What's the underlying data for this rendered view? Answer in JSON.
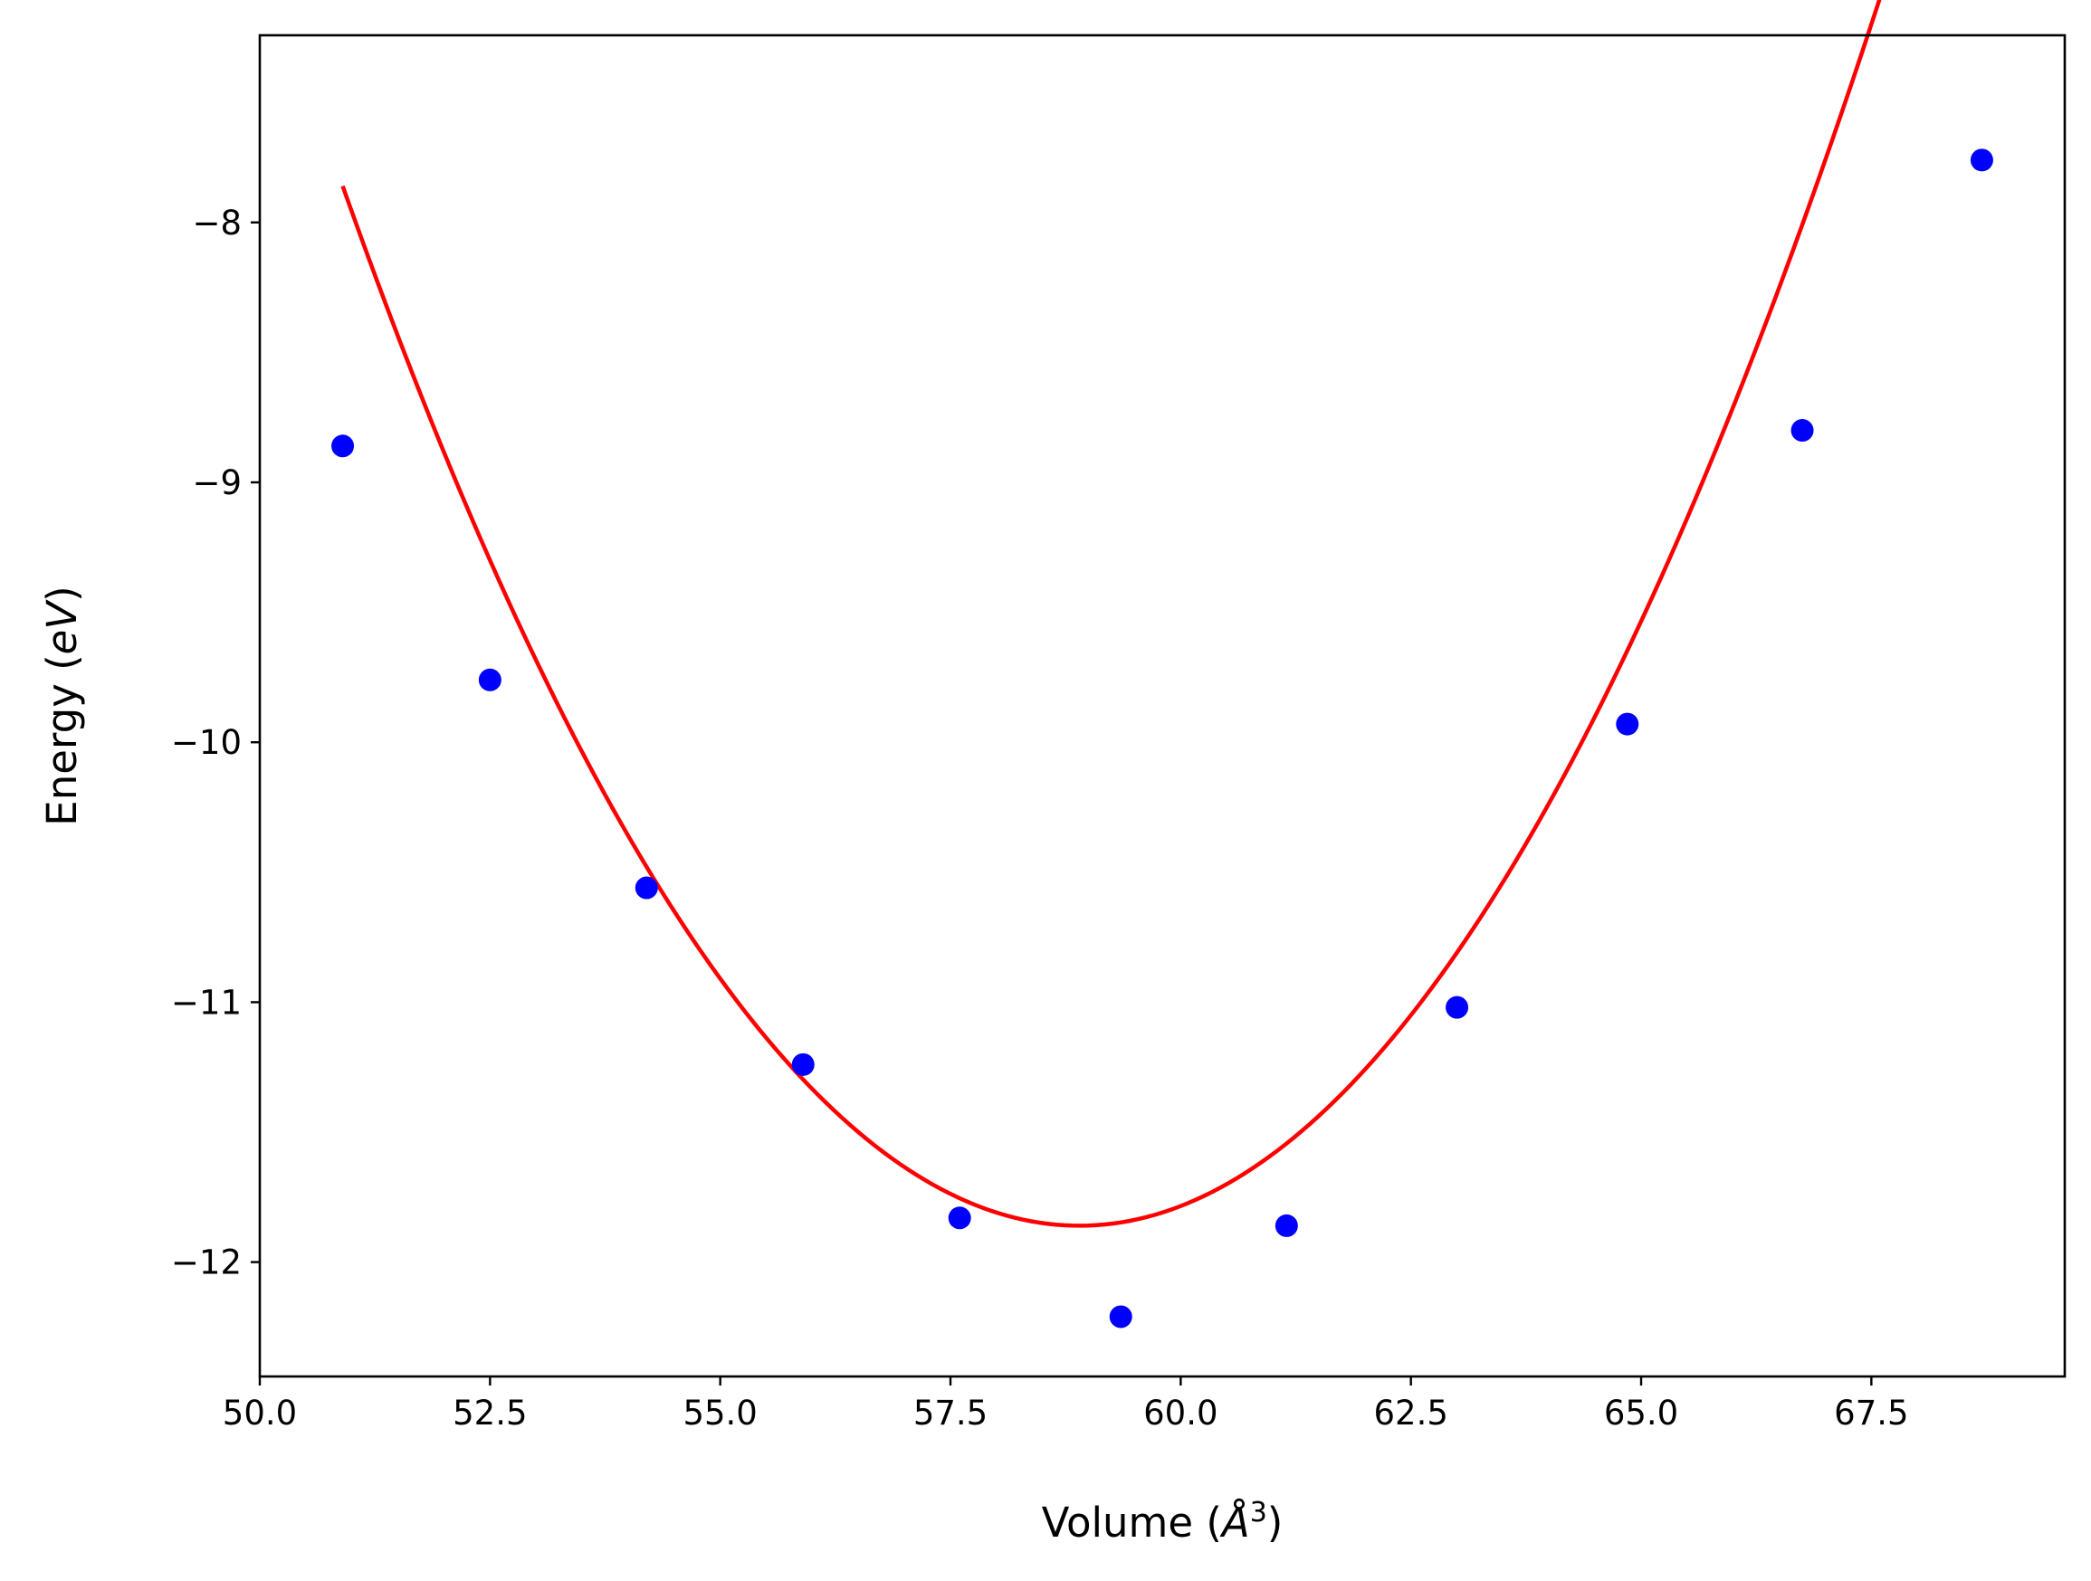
{
  "chart_data": {
    "type": "scatter",
    "title": "",
    "xlabel": {
      "prefix": "Volume (",
      "symbol": "Å",
      "sup": "3",
      "suffix": ")"
    },
    "ylabel": {
      "prefix": "Energy (",
      "unit": "eV",
      "suffix": ")"
    },
    "xlim": [
      50.0,
      69.6
    ],
    "ylim": [
      -12.44,
      -7.28
    ],
    "xticks": [
      50.0,
      52.5,
      55.0,
      57.5,
      60.0,
      62.5,
      65.0,
      67.5
    ],
    "xtick_labels": [
      "50.0",
      "52.5",
      "55.0",
      "57.5",
      "60.0",
      "62.5",
      "65.0",
      "67.5"
    ],
    "yticks": [
      -12,
      -11,
      -10,
      -9,
      -8
    ],
    "ytick_labels": [
      "−12",
      "−11",
      "−10",
      "−9",
      "−8"
    ],
    "grid": false,
    "legend": "none",
    "series": [
      {
        "kind": "points",
        "color": "#0000ff",
        "x": [
          50.9,
          52.5,
          54.2,
          55.9,
          57.6,
          59.35,
          61.15,
          63.0,
          64.85,
          66.75,
          68.7
        ],
        "y": [
          -8.86,
          -9.76,
          -10.56,
          -11.24,
          -11.83,
          -12.21,
          -11.86,
          -11.02,
          -9.93,
          -8.8,
          -7.76
        ]
      },
      {
        "kind": "fit-curve",
        "color": "#ff0000",
        "x_range": [
          50.9,
          68.7
        ],
        "x_min": 58.9,
        "y_min": -11.86,
        "curvature": 0.0625
      }
    ]
  }
}
